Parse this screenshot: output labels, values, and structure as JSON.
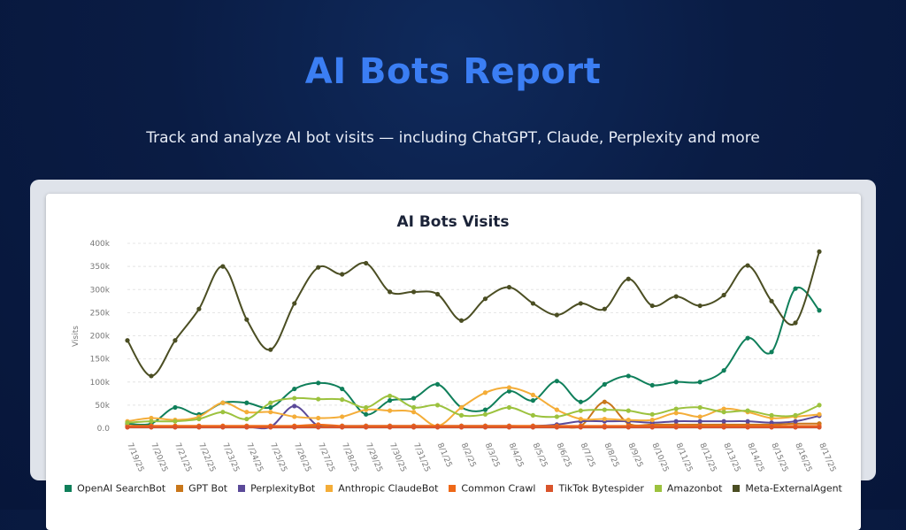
{
  "header": {
    "title": "AI Bots Report",
    "subtitle": "Track and analyze AI bot visits — including ChatGPT, Claude, Perplexity and more"
  },
  "chart_data": {
    "type": "line",
    "title": "AI Bots Visits",
    "xlabel": "",
    "ylabel": "Visits",
    "ylim": [
      0,
      400000
    ],
    "y_ticks": [
      0,
      50000,
      100000,
      150000,
      200000,
      250000,
      300000,
      350000,
      400000
    ],
    "y_tick_labels": [
      "0.0",
      "50k",
      "100k",
      "150k",
      "200k",
      "250k",
      "300k",
      "350k",
      "400k"
    ],
    "grid": true,
    "legend_position": "bottom",
    "x": [
      "7/19/25",
      "7/20/25",
      "7/21/25",
      "7/22/25",
      "7/23/25",
      "7/24/25",
      "7/25/25",
      "7/26/25",
      "7/27/25",
      "7/28/25",
      "7/29/25",
      "7/30/25",
      "7/31/25",
      "8/1/25",
      "8/2/25",
      "8/3/25",
      "8/4/25",
      "8/5/25",
      "8/6/25",
      "8/7/25",
      "8/8/25",
      "8/9/25",
      "8/10/25",
      "8/11/25",
      "8/12/25",
      "8/13/25",
      "8/14/25",
      "8/15/25",
      "8/16/25",
      "8/17/25"
    ],
    "series": [
      {
        "name": "OpenAI SearchBot",
        "color": "#0f7f5a",
        "values": [
          10000,
          10000,
          45000,
          30000,
          55000,
          55000,
          45000,
          85000,
          98000,
          85000,
          30000,
          60000,
          65000,
          95000,
          45000,
          40000,
          80000,
          60000,
          102000,
          57000,
          95000,
          113000,
          93000,
          100000,
          100000,
          125000,
          195000,
          165000,
          302000,
          255000
        ]
      },
      {
        "name": "GPT Bot",
        "color": "#c9771a",
        "values": [
          5000,
          5000,
          5000,
          5000,
          5000,
          5000,
          5000,
          5000,
          5000,
          5000,
          5000,
          5000,
          5000,
          5000,
          5000,
          5000,
          5000,
          5000,
          5000,
          5000,
          57000,
          10000,
          8000,
          8000,
          8000,
          8000,
          8000,
          8000,
          10000,
          10000
        ]
      },
      {
        "name": "PerplexityBot",
        "color": "#5b4a99",
        "values": [
          3000,
          3000,
          3000,
          3000,
          3000,
          3000,
          3000,
          48000,
          5000,
          5000,
          5000,
          5000,
          5000,
          5000,
          5000,
          5000,
          5000,
          5000,
          8000,
          15000,
          15000,
          15000,
          12000,
          15000,
          15000,
          15000,
          15000,
          12000,
          15000,
          27000
        ]
      },
      {
        "name": "Anthropic ClaudeBot",
        "color": "#f4ad38",
        "values": [
          15000,
          22000,
          18000,
          25000,
          55000,
          35000,
          35000,
          25000,
          22000,
          25000,
          40000,
          38000,
          35000,
          5000,
          45000,
          77000,
          88000,
          72000,
          40000,
          20000,
          20000,
          18000,
          18000,
          33000,
          25000,
          42000,
          35000,
          22000,
          25000,
          30000
        ]
      },
      {
        "name": "Common Crawl",
        "color": "#ee6818",
        "values": [
          5000,
          5000,
          5000,
          5000,
          5000,
          5000,
          5000,
          5000,
          8000,
          5000,
          5000,
          5000,
          5000,
          5000,
          5000,
          5000,
          5000,
          5000,
          5000,
          5000,
          5000,
          5000,
          5000,
          5000,
          5000,
          5000,
          5000,
          5000,
          5000,
          5000
        ]
      },
      {
        "name": "TikTok Bytespider",
        "color": "#d9542b",
        "values": [
          2000,
          2000,
          2000,
          2000,
          2000,
          2000,
          2000,
          2000,
          2000,
          2000,
          2000,
          2000,
          2000,
          2000,
          2000,
          2000,
          2000,
          2000,
          2000,
          2000,
          2000,
          2000,
          2000,
          2000,
          2000,
          2000,
          2000,
          2000,
          2000,
          2000
        ]
      },
      {
        "name": "Amazonbot",
        "color": "#9cc23e",
        "values": [
          12000,
          15000,
          15000,
          20000,
          35000,
          20000,
          55000,
          65000,
          63000,
          62000,
          45000,
          70000,
          45000,
          50000,
          28000,
          30000,
          45000,
          28000,
          25000,
          38000,
          40000,
          38000,
          30000,
          42000,
          45000,
          35000,
          38000,
          28000,
          28000,
          50000
        ]
      },
      {
        "name": "Meta-ExternalAgent",
        "color": "#4b4e23",
        "values": [
          190000,
          113000,
          190000,
          258000,
          350000,
          235000,
          170000,
          270000,
          348000,
          333000,
          357000,
          295000,
          295000,
          290000,
          233000,
          280000,
          305000,
          270000,
          245000,
          270000,
          258000,
          323000,
          265000,
          285000,
          265000,
          288000,
          352000,
          275000,
          228000,
          382000
        ]
      }
    ]
  }
}
